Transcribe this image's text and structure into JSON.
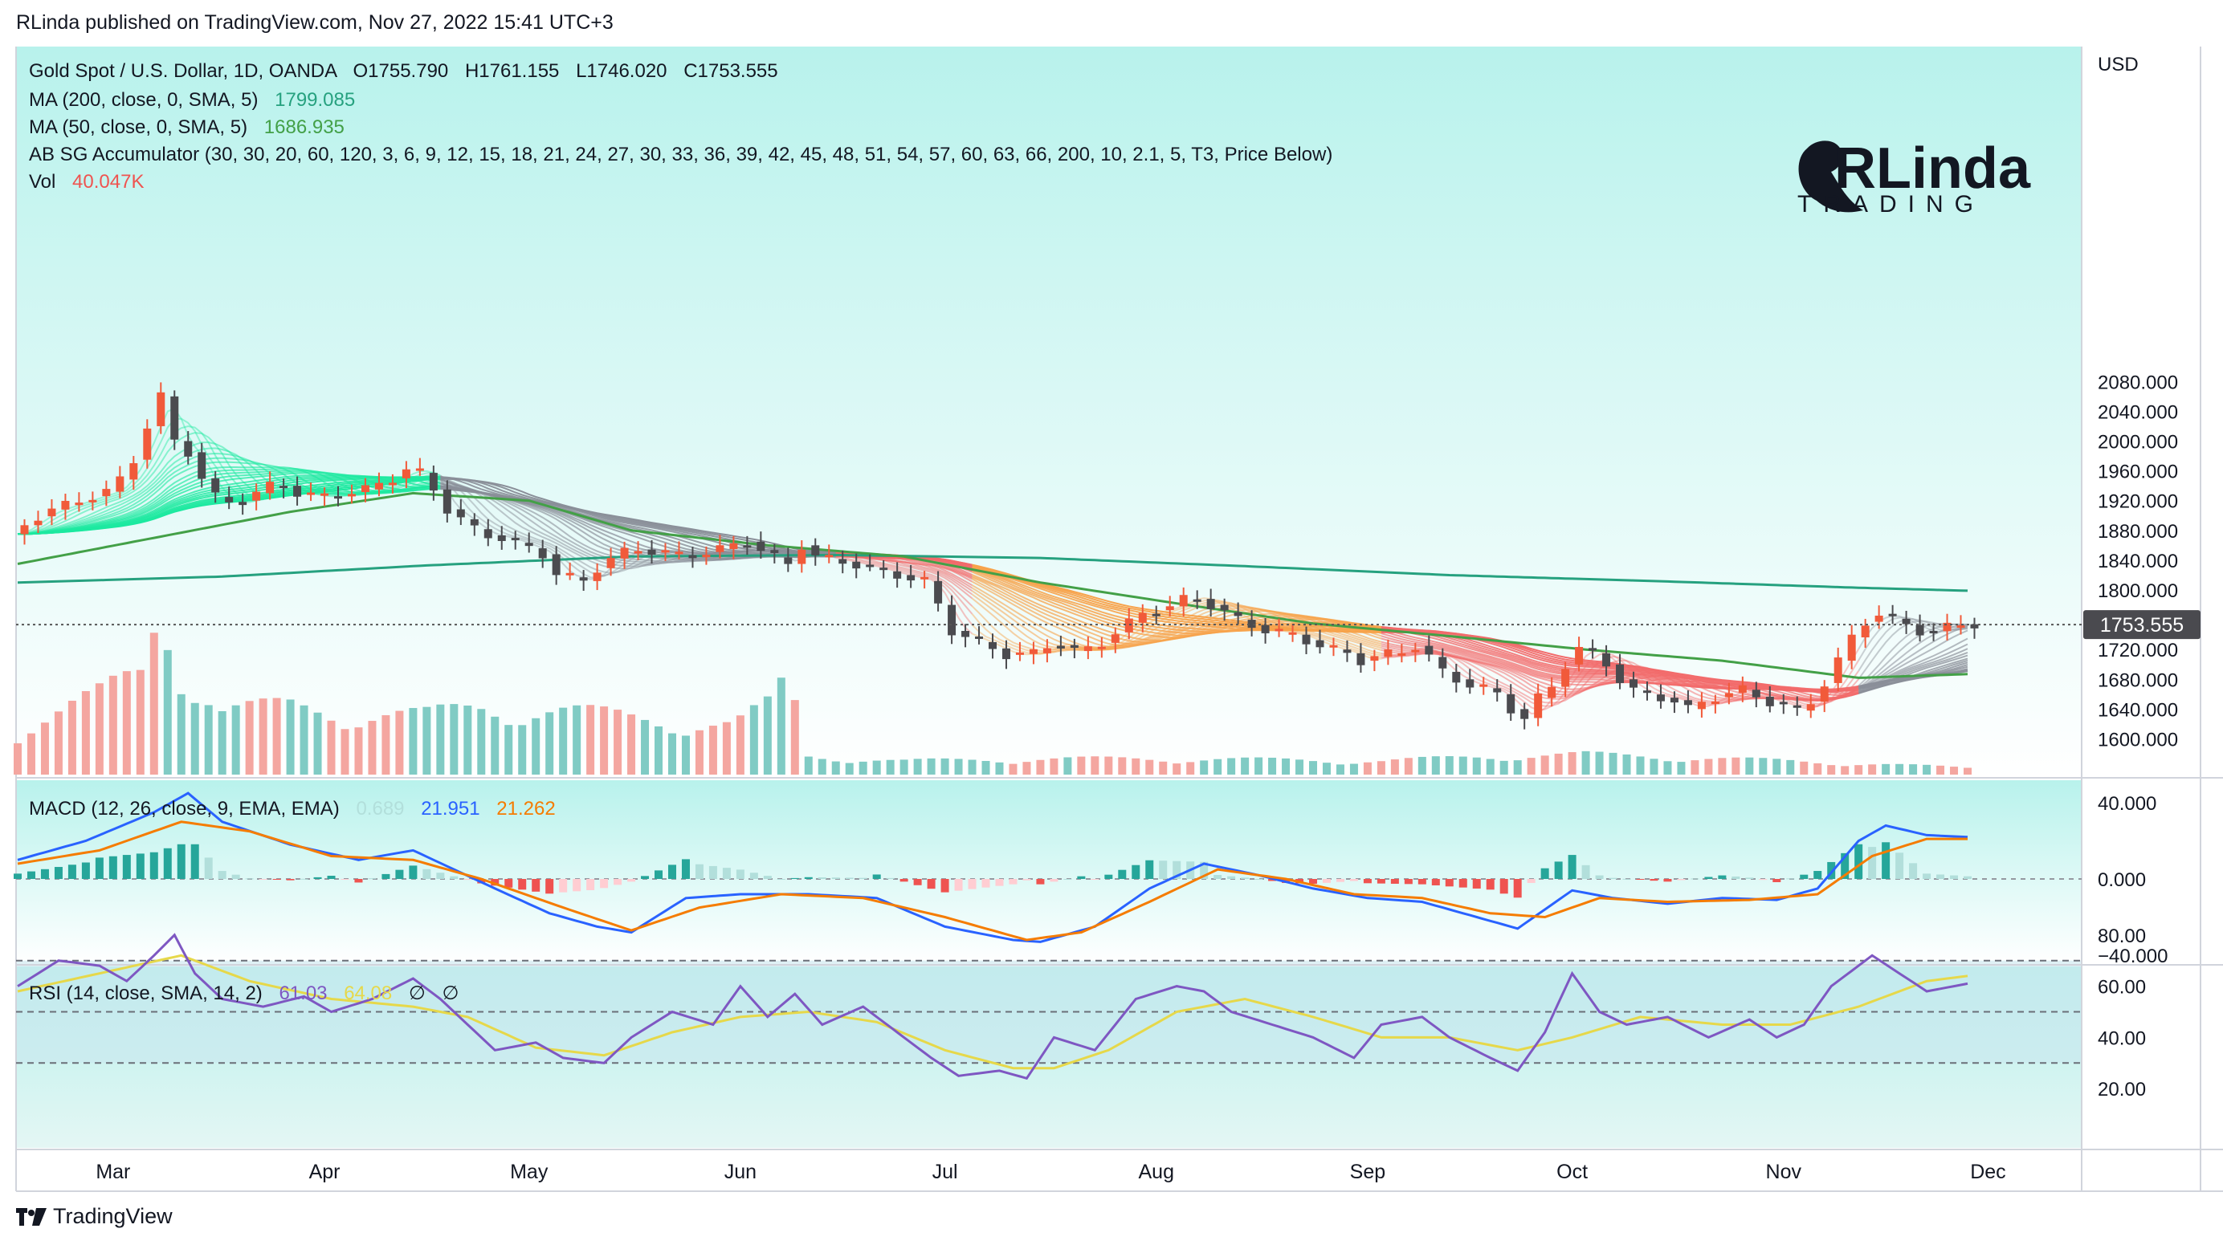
{
  "header": {
    "publisher_line": "RLinda published on TradingView.com, Nov 27, 2022 15:41 UTC+3"
  },
  "footer": {
    "brand": "TradingView"
  },
  "logo": {
    "line1": "RLinda",
    "line2": "TRADING"
  },
  "colors": {
    "bg_main": "#b8f2ec",
    "bg_fade": "#ffffff",
    "up": "#f15a3a",
    "down": "#4b4b4f",
    "ma200": "#26a17f",
    "ma50": "#43a047",
    "macd": "#2962ff",
    "signal": "#f57c00",
    "rsi": "#7e57c2",
    "rsi_ma": "#e6d84a",
    "hist_pos": "#26a69a",
    "hist_neg": "#ef5350"
  },
  "chart_data": {
    "type": "candlestick",
    "symbol_line": {
      "name": "Gold Spot / U.S. Dollar, 1D, OANDA",
      "O": "O1755.790",
      "H": "H1761.155",
      "L": "L1746.020",
      "C": "C1753.555"
    },
    "indicators": [
      {
        "label": "MA (200, close, 0, SMA, 5)",
        "value": "1799.085",
        "color": "#26a17f"
      },
      {
        "label": "MA (50, close, 0, SMA, 5)",
        "value": "1686.935",
        "color": "#43a047"
      },
      {
        "label": "AB SG Accumulator (30, 30, 20, 60, 120, 3, 6, 9, 12, 15, 18, 21, 24, 27, 30, 33, 36, 39, 42, 45, 48, 51, 54, 57, 60, 63, 66, 200, 10, 2.1, 5, T3, Price Below)",
        "value": "",
        "color": "#131722"
      },
      {
        "label": "Vol",
        "value": "40.047K",
        "color": "#ef5350"
      }
    ],
    "currency": "USD",
    "last_price": "1753.555",
    "price_ticks": [
      "2080.000",
      "2040.000",
      "2000.000",
      "1960.000",
      "1920.000",
      "1880.000",
      "1840.000",
      "1800.000",
      "1720.000",
      "1680.000",
      "1640.000",
      "1600.000"
    ],
    "price_tick_values": [
      2080,
      2040,
      2000,
      1960,
      1920,
      1880,
      1840,
      1800,
      1720,
      1680,
      1640,
      1600
    ],
    "x_labels": [
      "Mar",
      "Apr",
      "May",
      "Jun",
      "Jul",
      "Aug",
      "Sep",
      "Oct",
      "Nov",
      "Dec"
    ],
    "x_label_days": [
      14,
      45,
      75,
      106,
      136,
      167,
      198,
      228,
      259,
      289
    ],
    "price_path": [
      [
        0,
        1875
      ],
      [
        5,
        1905
      ],
      [
        10,
        1920
      ],
      [
        15,
        1935
      ],
      [
        18,
        1975
      ],
      [
        20,
        2020
      ],
      [
        22,
        2060
      ],
      [
        24,
        2000
      ],
      [
        26,
        1985
      ],
      [
        28,
        1950
      ],
      [
        30,
        1925
      ],
      [
        33,
        1915
      ],
      [
        36,
        1930
      ],
      [
        39,
        1945
      ],
      [
        42,
        1930
      ],
      [
        45,
        1925
      ],
      [
        48,
        1928
      ],
      [
        52,
        1935
      ],
      [
        56,
        1950
      ],
      [
        58,
        1962
      ],
      [
        61,
        1955
      ],
      [
        63,
        1915
      ],
      [
        66,
        1895
      ],
      [
        69,
        1875
      ],
      [
        72,
        1870
      ],
      [
        75,
        1860
      ],
      [
        78,
        1848
      ],
      [
        80,
        1822
      ],
      [
        84,
        1812
      ],
      [
        87,
        1838
      ],
      [
        91,
        1855
      ],
      [
        95,
        1852
      ],
      [
        99,
        1845
      ],
      [
        104,
        1855
      ],
      [
        108,
        1865
      ],
      [
        111,
        1848
      ],
      [
        114,
        1835
      ],
      [
        116,
        1860
      ],
      [
        118,
        1845
      ],
      [
        122,
        1838
      ],
      [
        126,
        1830
      ],
      [
        130,
        1820
      ],
      [
        134,
        1812
      ],
      [
        136,
        1780
      ],
      [
        138,
        1745
      ],
      [
        142,
        1730
      ],
      [
        146,
        1713
      ],
      [
        150,
        1715
      ],
      [
        153,
        1730
      ],
      [
        156,
        1718
      ],
      [
        159,
        1722
      ],
      [
        163,
        1750
      ],
      [
        166,
        1768
      ],
      [
        170,
        1778
      ],
      [
        173,
        1792
      ],
      [
        176,
        1780
      ],
      [
        180,
        1760
      ],
      [
        184,
        1746
      ],
      [
        188,
        1740
      ],
      [
        192,
        1725
      ],
      [
        196,
        1715
      ],
      [
        198,
        1705
      ],
      [
        201,
        1713
      ],
      [
        204,
        1717
      ],
      [
        206,
        1725
      ],
      [
        208,
        1710
      ],
      [
        210,
        1690
      ],
      [
        213,
        1675
      ],
      [
        216,
        1668
      ],
      [
        218,
        1660
      ],
      [
        220,
        1640
      ],
      [
        222,
        1628
      ],
      [
        224,
        1655
      ],
      [
        226,
        1670
      ],
      [
        228,
        1700
      ],
      [
        230,
        1722
      ],
      [
        232,
        1715
      ],
      [
        234,
        1700
      ],
      [
        236,
        1680
      ],
      [
        238,
        1665
      ],
      [
        241,
        1657
      ],
      [
        244,
        1652
      ],
      [
        246,
        1640
      ],
      [
        248,
        1648
      ],
      [
        251,
        1660
      ],
      [
        254,
        1666
      ],
      [
        257,
        1652
      ],
      [
        260,
        1645
      ],
      [
        262,
        1638
      ],
      [
        264,
        1650
      ],
      [
        266,
        1675
      ],
      [
        268,
        1705
      ],
      [
        271,
        1752
      ],
      [
        274,
        1768
      ],
      [
        277,
        1758
      ],
      [
        279,
        1748
      ],
      [
        281,
        1742
      ],
      [
        284,
        1750
      ],
      [
        286,
        1754
      ]
    ],
    "ma200_path": [
      [
        0,
        1810
      ],
      [
        30,
        1818
      ],
      [
        60,
        1833
      ],
      [
        90,
        1845
      ],
      [
        120,
        1847
      ],
      [
        150,
        1843
      ],
      [
        180,
        1832
      ],
      [
        210,
        1820
      ],
      [
        240,
        1812
      ],
      [
        270,
        1803
      ],
      [
        286,
        1799
      ]
    ],
    "ma50_path": [
      [
        0,
        1835
      ],
      [
        20,
        1870
      ],
      [
        40,
        1905
      ],
      [
        58,
        1930
      ],
      [
        75,
        1920
      ],
      [
        90,
        1880
      ],
      [
        110,
        1860
      ],
      [
        130,
        1845
      ],
      [
        150,
        1810
      ],
      [
        170,
        1782
      ],
      [
        190,
        1755
      ],
      [
        210,
        1738
      ],
      [
        230,
        1720
      ],
      [
        250,
        1705
      ],
      [
        270,
        1682
      ],
      [
        286,
        1687
      ]
    ],
    "volume_path": [
      [
        0,
        0.2
      ],
      [
        12,
        0.35
      ],
      [
        18,
        0.45
      ],
      [
        21,
        0.78
      ],
      [
        23,
        0.55
      ],
      [
        26,
        0.4
      ],
      [
        30,
        0.28
      ],
      [
        40,
        0.3
      ],
      [
        50,
        0.27
      ],
      [
        60,
        0.26
      ],
      [
        68,
        0.3
      ],
      [
        80,
        0.28
      ],
      [
        90,
        0.25
      ],
      [
        105,
        0.22
      ],
      [
        110,
        0.3
      ],
      [
        113,
        0.42
      ],
      [
        116,
        0.08
      ],
      [
        130,
        0.06
      ],
      [
        150,
        0.07
      ],
      [
        170,
        0.07
      ],
      [
        200,
        0.06
      ],
      [
        215,
        0.08
      ],
      [
        230,
        0.09
      ],
      [
        250,
        0.07
      ],
      [
        270,
        0.05
      ],
      [
        286,
        0.03
      ]
    ],
    "rect_volume_max_label": "",
    "macd": {
      "label": "MACD (12, 26, close, 9, EMA, EMA)",
      "hist_value": "0.689",
      "macd_value": "21.951",
      "signal_value": "21.262",
      "ticks": [
        "40.000",
        "0.000",
        "−40.000"
      ],
      "tick_values": [
        40,
        0,
        -40
      ],
      "macd_path": [
        [
          0,
          10
        ],
        [
          10,
          20
        ],
        [
          20,
          35
        ],
        [
          25,
          45
        ],
        [
          30,
          30
        ],
        [
          40,
          18
        ],
        [
          50,
          10
        ],
        [
          58,
          15
        ],
        [
          64,
          5
        ],
        [
          70,
          -5
        ],
        [
          78,
          -18
        ],
        [
          85,
          -25
        ],
        [
          90,
          -28
        ],
        [
          98,
          -10
        ],
        [
          106,
          -8
        ],
        [
          116,
          -8
        ],
        [
          126,
          -10
        ],
        [
          136,
          -25
        ],
        [
          146,
          -32
        ],
        [
          150,
          -33
        ],
        [
          158,
          -25
        ],
        [
          166,
          -5
        ],
        [
          174,
          8
        ],
        [
          182,
          2
        ],
        [
          190,
          -5
        ],
        [
          198,
          -10
        ],
        [
          206,
          -12
        ],
        [
          214,
          -20
        ],
        [
          220,
          -26
        ],
        [
          228,
          -6
        ],
        [
          234,
          -10
        ],
        [
          242,
          -13
        ],
        [
          250,
          -10
        ],
        [
          258,
          -11
        ],
        [
          264,
          -5
        ],
        [
          270,
          20
        ],
        [
          274,
          28
        ],
        [
          280,
          23
        ],
        [
          286,
          22
        ]
      ],
      "signal_path": [
        [
          0,
          8
        ],
        [
          12,
          15
        ],
        [
          24,
          30
        ],
        [
          34,
          25
        ],
        [
          46,
          12
        ],
        [
          58,
          10
        ],
        [
          68,
          0
        ],
        [
          80,
          -15
        ],
        [
          90,
          -27
        ],
        [
          100,
          -15
        ],
        [
          112,
          -8
        ],
        [
          124,
          -10
        ],
        [
          136,
          -20
        ],
        [
          148,
          -32
        ],
        [
          156,
          -28
        ],
        [
          166,
          -12
        ],
        [
          176,
          5
        ],
        [
          186,
          0
        ],
        [
          196,
          -8
        ],
        [
          206,
          -10
        ],
        [
          216,
          -18
        ],
        [
          224,
          -20
        ],
        [
          232,
          -10
        ],
        [
          242,
          -12
        ],
        [
          254,
          -11
        ],
        [
          264,
          -8
        ],
        [
          272,
          12
        ],
        [
          280,
          21
        ],
        [
          286,
          21
        ]
      ]
    },
    "rsi": {
      "label": "RSI (14, close, SMA, 14, 2)",
      "rsi_value": "61.03",
      "ma_value": "64.08",
      "extra1": "∅",
      "extra2": "∅",
      "ticks": [
        "80.00",
        "60.00",
        "40.00",
        "20.00"
      ],
      "tick_values": [
        80,
        60,
        40,
        20
      ],
      "bands": [
        70,
        50,
        30
      ],
      "rsi_path": [
        [
          0,
          60
        ],
        [
          6,
          70
        ],
        [
          12,
          68
        ],
        [
          16,
          62
        ],
        [
          20,
          72
        ],
        [
          23,
          80
        ],
        [
          26,
          65
        ],
        [
          30,
          55
        ],
        [
          36,
          52
        ],
        [
          42,
          56
        ],
        [
          46,
          50
        ],
        [
          52,
          55
        ],
        [
          58,
          63
        ],
        [
          62,
          55
        ],
        [
          66,
          45
        ],
        [
          70,
          35
        ],
        [
          76,
          38
        ],
        [
          80,
          32
        ],
        [
          86,
          30
        ],
        [
          90,
          40
        ],
        [
          96,
          50
        ],
        [
          102,
          45
        ],
        [
          106,
          60
        ],
        [
          110,
          48
        ],
        [
          114,
          57
        ],
        [
          118,
          45
        ],
        [
          124,
          52
        ],
        [
          130,
          40
        ],
        [
          134,
          32
        ],
        [
          138,
          25
        ],
        [
          144,
          27
        ],
        [
          148,
          24
        ],
        [
          152,
          40
        ],
        [
          158,
          35
        ],
        [
          164,
          55
        ],
        [
          170,
          60
        ],
        [
          174,
          58
        ],
        [
          178,
          50
        ],
        [
          184,
          45
        ],
        [
          190,
          40
        ],
        [
          196,
          32
        ],
        [
          200,
          45
        ],
        [
          206,
          48
        ],
        [
          210,
          40
        ],
        [
          216,
          32
        ],
        [
          220,
          27
        ],
        [
          224,
          42
        ],
        [
          228,
          65
        ],
        [
          232,
          50
        ],
        [
          236,
          45
        ],
        [
          242,
          48
        ],
        [
          248,
          40
        ],
        [
          254,
          47
        ],
        [
          258,
          40
        ],
        [
          262,
          45
        ],
        [
          266,
          60
        ],
        [
          272,
          72
        ],
        [
          276,
          65
        ],
        [
          280,
          58
        ],
        [
          286,
          61
        ]
      ],
      "ma_path": [
        [
          0,
          58
        ],
        [
          12,
          65
        ],
        [
          24,
          72
        ],
        [
          34,
          62
        ],
        [
          46,
          55
        ],
        [
          58,
          52
        ],
        [
          66,
          48
        ],
        [
          76,
          36
        ],
        [
          86,
          33
        ],
        [
          96,
          42
        ],
        [
          106,
          48
        ],
        [
          116,
          50
        ],
        [
          126,
          46
        ],
        [
          136,
          35
        ],
        [
          146,
          28
        ],
        [
          152,
          28
        ],
        [
          160,
          35
        ],
        [
          170,
          50
        ],
        [
          180,
          55
        ],
        [
          190,
          48
        ],
        [
          200,
          40
        ],
        [
          210,
          40
        ],
        [
          220,
          35
        ],
        [
          228,
          40
        ],
        [
          238,
          48
        ],
        [
          250,
          45
        ],
        [
          260,
          45
        ],
        [
          270,
          52
        ],
        [
          280,
          62
        ],
        [
          286,
          64
        ]
      ]
    }
  }
}
